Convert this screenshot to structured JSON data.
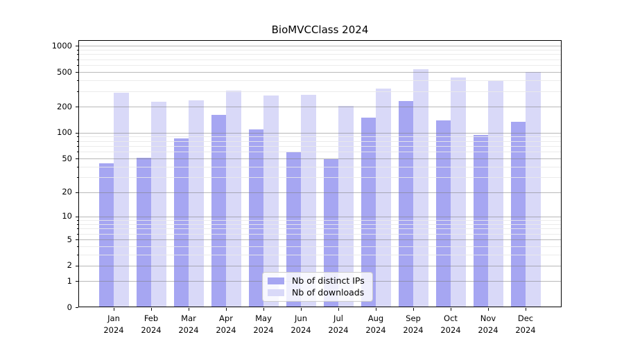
{
  "title": "BioMVCClass 2024",
  "chart_data": {
    "type": "bar",
    "title": "BioMVCClass 2024",
    "categories": [
      "Jan 2024",
      "Feb 2024",
      "Mar 2024",
      "Apr 2024",
      "May 2024",
      "Jun 2024",
      "Jul 2024",
      "Aug 2024",
      "Sep 2024",
      "Oct 2024",
      "Nov 2024",
      "Dec 2024"
    ],
    "series": [
      {
        "name": "Nb of distinct IPs",
        "values": [
          44,
          51,
          85,
          160,
          109,
          59,
          49,
          149,
          231,
          138,
          94,
          133
        ]
      },
      {
        "name": "Nb of downloads",
        "values": [
          287,
          226,
          236,
          307,
          270,
          273,
          204,
          322,
          542,
          432,
          395,
          499
        ]
      }
    ],
    "colors": {
      "ips": "#a6a6f2",
      "downloads": "#d9d9f8"
    },
    "yscale": "log1p",
    "ylim": [
      0,
      1170
    ],
    "y_ticks": [
      0,
      1,
      2,
      5,
      10,
      20,
      50,
      100,
      200,
      500,
      1000
    ],
    "y_minor_ticks": [
      3,
      4,
      6,
      7,
      8,
      9,
      30,
      40,
      60,
      70,
      80,
      90,
      300,
      400,
      600,
      700,
      800,
      900
    ],
    "xlabel": "",
    "ylabel": "",
    "grid": "horizontal, drawn over bars",
    "legend_position": "inside lower center"
  }
}
